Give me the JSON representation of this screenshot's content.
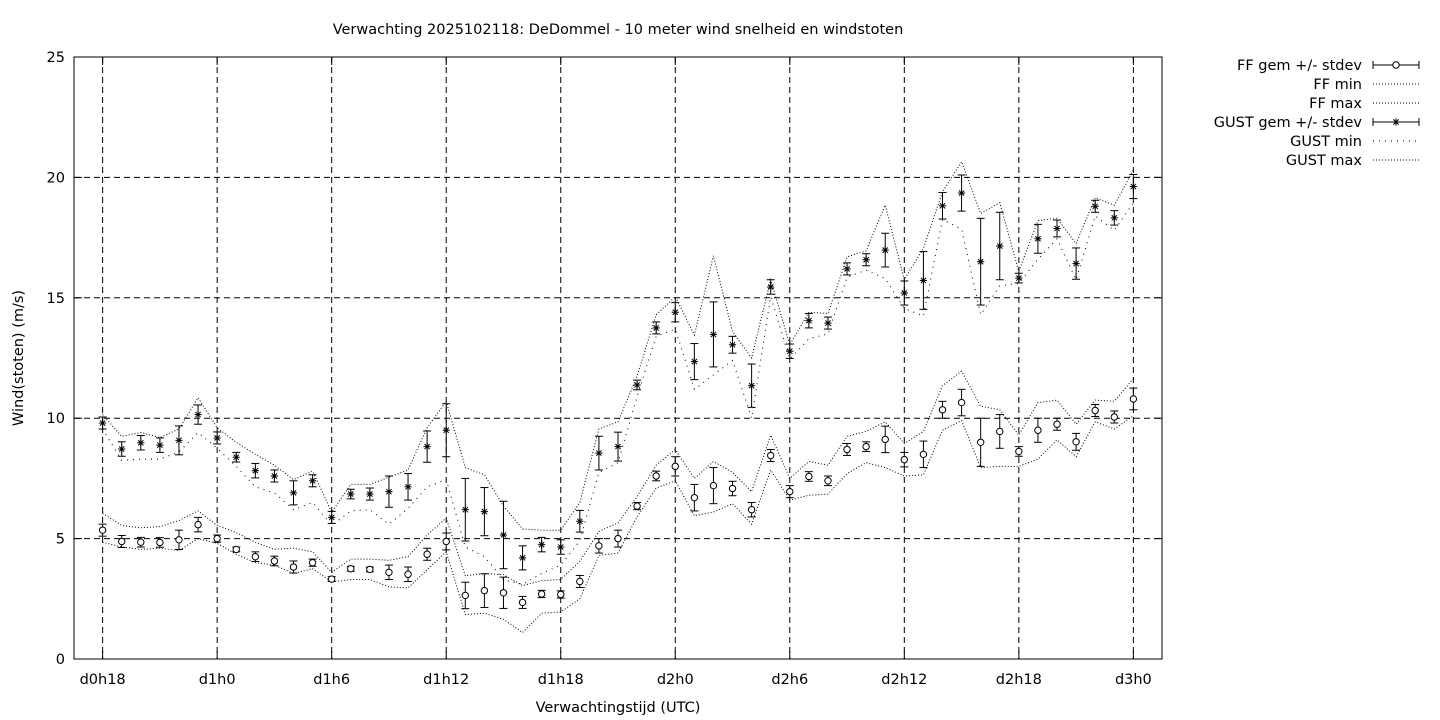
{
  "chart_data": {
    "type": "line",
    "title": "Verwachting 2025102118: DeDommel - 10 meter wind snelheid en windstoten",
    "xlabel": "Verwachtingstijd (UTC)",
    "ylabel": "Wind(stoten) (m/s)",
    "ylim": [
      0,
      25
    ],
    "xlim_hours": [
      -1.5,
      55.5
    ],
    "grid": true,
    "legend_position": "outside-right-top",
    "y_ticks": [
      "0",
      "5",
      "10",
      "15",
      "20",
      "25"
    ],
    "x_ticks": [
      {
        "label": "d0h18",
        "hour": 0
      },
      {
        "label": "d1h0",
        "hour": 6
      },
      {
        "label": "d1h6",
        "hour": 12
      },
      {
        "label": "d1h12",
        "hour": 18
      },
      {
        "label": "d1h18",
        "hour": 24
      },
      {
        "label": "d2h0",
        "hour": 30
      },
      {
        "label": "d2h6",
        "hour": 36
      },
      {
        "label": "d2h12",
        "hour": 42
      },
      {
        "label": "d2h18",
        "hour": 48
      },
      {
        "label": "d3h0",
        "hour": 54
      }
    ],
    "hours": [
      0,
      1,
      2,
      3,
      4,
      5,
      6,
      7,
      8,
      9,
      10,
      11,
      12,
      13,
      14,
      15,
      16,
      17,
      18,
      19,
      20,
      21,
      22,
      23,
      24,
      25,
      26,
      27,
      28,
      29,
      30,
      31,
      32,
      33,
      34,
      35,
      36,
      37,
      38,
      39,
      40,
      41,
      42,
      43,
      44,
      45,
      46,
      47,
      48,
      49,
      50,
      51,
      52,
      53,
      54
    ],
    "series": [
      {
        "name": "FF gem +/- stdev",
        "style": "points-circle-errorbars",
        "mean": [
          5.35,
          4.88,
          4.85,
          4.84,
          4.95,
          5.58,
          5.0,
          4.55,
          4.25,
          4.07,
          3.82,
          4.0,
          3.32,
          3.75,
          3.72,
          3.6,
          3.52,
          4.35,
          4.88,
          2.64,
          2.84,
          2.75,
          2.35,
          2.7,
          2.68,
          3.22,
          4.7,
          5.0,
          6.35,
          7.6,
          8.0,
          6.7,
          7.2,
          7.08,
          6.2,
          8.45,
          6.95,
          7.58,
          7.4,
          8.7,
          8.82,
          9.12,
          8.28,
          8.5,
          10.35,
          10.65,
          9.0,
          9.45,
          8.62,
          9.5,
          9.75,
          9.02,
          10.32,
          10.05,
          10.8
        ],
        "stdev": [
          0.25,
          0.25,
          0.2,
          0.2,
          0.4,
          0.3,
          0.15,
          0.1,
          0.2,
          0.2,
          0.25,
          0.15,
          0.1,
          0.1,
          0.1,
          0.3,
          0.3,
          0.25,
          0.35,
          0.55,
          0.7,
          0.65,
          0.25,
          0.15,
          0.15,
          0.25,
          0.3,
          0.35,
          0.15,
          0.2,
          0.4,
          0.55,
          0.75,
          0.3,
          0.3,
          0.25,
          0.25,
          0.2,
          0.2,
          0.25,
          0.2,
          0.55,
          0.3,
          0.55,
          0.35,
          0.55,
          1.0,
          0.7,
          0.2,
          0.5,
          0.25,
          0.35,
          0.25,
          0.25,
          0.45
        ]
      },
      {
        "name": "FF min",
        "style": "dotted",
        "values": [
          4.85,
          4.65,
          4.55,
          4.6,
          4.5,
          5.0,
          4.8,
          4.35,
          4.0,
          3.9,
          3.55,
          3.75,
          3.2,
          3.3,
          3.3,
          3.0,
          2.95,
          3.7,
          4.45,
          1.85,
          1.9,
          1.65,
          1.1,
          1.9,
          1.95,
          2.5,
          4.3,
          4.4,
          5.9,
          7.1,
          7.4,
          5.95,
          6.1,
          6.45,
          5.6,
          7.85,
          6.6,
          6.8,
          6.85,
          7.7,
          8.15,
          7.95,
          7.6,
          7.65,
          9.5,
          9.9,
          7.95,
          8.0,
          8.0,
          8.3,
          9.1,
          8.4,
          9.85,
          9.55,
          10.1
        ]
      },
      {
        "name": "FF max",
        "style": "dotted",
        "values": [
          6.05,
          5.55,
          5.45,
          5.5,
          5.75,
          6.15,
          5.55,
          5.25,
          4.85,
          4.55,
          4.6,
          4.45,
          3.6,
          4.15,
          4.15,
          4.1,
          4.25,
          5.15,
          5.85,
          3.45,
          3.55,
          3.5,
          3.05,
          3.25,
          3.3,
          4.05,
          5.3,
          5.65,
          6.75,
          8.05,
          8.7,
          7.5,
          8.2,
          7.75,
          6.95,
          9.3,
          7.5,
          8.2,
          8.05,
          9.25,
          9.45,
          9.85,
          8.95,
          9.45,
          11.35,
          11.95,
          10.5,
          10.35,
          9.3,
          10.65,
          10.75,
          9.75,
          10.75,
          10.7,
          11.65
        ]
      },
      {
        "name": "GUST gem +/- stdev",
        "style": "points-star-errorbars",
        "mean": [
          9.8,
          8.72,
          8.98,
          8.88,
          9.08,
          10.15,
          9.18,
          8.38,
          7.82,
          7.6,
          6.9,
          7.4,
          5.88,
          6.85,
          6.85,
          6.95,
          7.15,
          8.82,
          9.5,
          6.2,
          6.12,
          5.15,
          4.2,
          4.75,
          4.65,
          5.72,
          8.55,
          8.82,
          11.38,
          13.75,
          14.4,
          12.35,
          13.48,
          13.05,
          11.35,
          15.45,
          12.78,
          14.05,
          13.95,
          16.2,
          16.58,
          16.98,
          15.2,
          15.72,
          18.82,
          19.35,
          16.5,
          17.15,
          15.82,
          17.45,
          17.88,
          16.42,
          18.8,
          18.32,
          19.62
        ],
        "stdev": [
          0.25,
          0.3,
          0.3,
          0.3,
          0.6,
          0.4,
          0.25,
          0.2,
          0.3,
          0.25,
          0.5,
          0.25,
          0.25,
          0.2,
          0.25,
          0.65,
          0.55,
          0.65,
          1.1,
          1.3,
          1.0,
          1.4,
          0.5,
          0.3,
          0.3,
          0.45,
          0.7,
          0.6,
          0.2,
          0.25,
          0.4,
          0.75,
          1.35,
          0.35,
          0.9,
          0.3,
          0.3,
          0.3,
          0.25,
          0.25,
          0.25,
          0.7,
          0.5,
          1.2,
          0.55,
          0.75,
          1.8,
          1.4,
          0.2,
          0.6,
          0.35,
          0.65,
          0.25,
          0.3,
          0.5
        ]
      },
      {
        "name": "GUST min",
        "style": "sparse-dotted",
        "values": [
          9.55,
          8.25,
          8.3,
          8.3,
          8.6,
          9.4,
          8.75,
          8.0,
          7.15,
          6.9,
          6.2,
          6.5,
          5.55,
          6.15,
          6.2,
          5.6,
          6.25,
          7.15,
          7.45,
          4.65,
          4.25,
          3.3,
          3.1,
          3.55,
          3.9,
          4.9,
          7.75,
          8.15,
          10.9,
          13.4,
          13.7,
          11.2,
          11.8,
          12.4,
          10.0,
          15.05,
          12.45,
          13.3,
          13.5,
          15.85,
          16.15,
          15.8,
          14.55,
          14.25,
          18.25,
          17.85,
          14.3,
          15.5,
          15.6,
          16.6,
          17.45,
          15.75,
          18.4,
          17.8,
          18.95
        ]
      },
      {
        "name": "GUST max",
        "style": "dotted",
        "values": [
          10.15,
          9.25,
          9.4,
          9.2,
          9.55,
          10.85,
          9.6,
          9.0,
          8.5,
          8.05,
          7.45,
          7.8,
          6.1,
          7.25,
          7.25,
          7.55,
          7.85,
          9.6,
          10.7,
          7.95,
          7.65,
          6.35,
          5.4,
          5.35,
          5.35,
          6.5,
          9.55,
          9.85,
          11.75,
          14.3,
          15.05,
          13.45,
          16.75,
          13.6,
          12.5,
          15.75,
          13.05,
          14.4,
          14.35,
          16.7,
          16.95,
          18.85,
          15.75,
          17.05,
          19.4,
          20.65,
          18.5,
          18.95,
          16.1,
          18.2,
          18.3,
          17.25,
          19.15,
          18.85,
          20.3
        ]
      }
    ]
  }
}
